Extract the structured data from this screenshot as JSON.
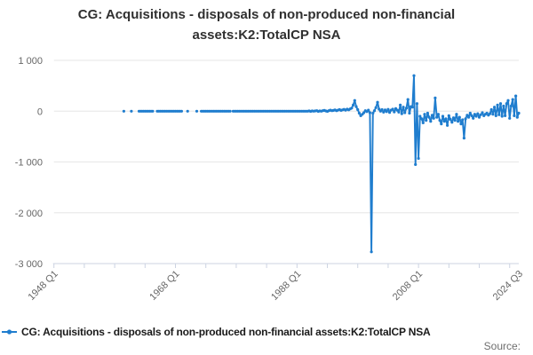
{
  "title": {
    "line1": "CG: Acquisitions - disposals of non-produced non-financial",
    "line2": "assets:K2:TotalCP NSA"
  },
  "legend": {
    "label": "CG: Acquisitions - disposals of non-produced non-financial assets:K2:TotalCP NSA",
    "marker": "line-with-dot-icon"
  },
  "footer": {
    "source_label": "Source:"
  },
  "colors": {
    "line": "#1f7dce",
    "grid": "#e6e6e6",
    "axis": "#ccd3e2",
    "tick_label": "#666666",
    "title_text": "#303030",
    "legend_text": "#1a1a1a",
    "source_text": "#6e6e6e"
  },
  "chart_data": {
    "type": "line",
    "title": "CG: Acquisitions - disposals of non-produced non-financial assets:K2:TotalCP NSA",
    "grid": true,
    "legend_position": "bottom-left",
    "ylim": [
      -3000,
      1000
    ],
    "x_range_years": [
      1948.0,
      2024.5
    ],
    "yticks": [
      {
        "value": 1000,
        "label": "1 000"
      },
      {
        "value": 0,
        "label": "0"
      },
      {
        "value": -1000,
        "label": "-1 000"
      },
      {
        "value": -2000,
        "label": "-2 000"
      },
      {
        "value": -3000,
        "label": "-3 000"
      }
    ],
    "xticks": [
      {
        "year": 1948.0,
        "label": "1948 Q1"
      },
      {
        "year": 1968.0,
        "label": "1968 Q1"
      },
      {
        "year": 1988.0,
        "label": "1988 Q1"
      },
      {
        "year": 2008.0,
        "label": "2008 Q1"
      },
      {
        "year": 2024.5,
        "label": "2024 Q3"
      }
    ],
    "minor_tick_years": [
      1948,
      1953,
      1958,
      1963,
      1968,
      1973,
      1978,
      1983,
      1988,
      1993,
      1998,
      2003,
      2008,
      2013,
      2018,
      2023
    ],
    "series": [
      {
        "name": "CG: Acquisitions - disposals of non-produced non-financial assets:K2:TotalCP NSA",
        "frequency": "quarterly",
        "start": "1959 Q3",
        "start_year_decimal": 1959.5,
        "values": [
          0,
          null,
          null,
          null,
          null,
          0,
          null,
          null,
          null,
          null,
          0,
          0,
          0,
          0,
          0,
          0,
          0,
          0,
          0,
          0,
          null,
          null,
          0,
          0,
          0,
          0,
          0,
          0,
          0,
          0,
          0,
          0,
          0,
          0,
          0,
          0,
          0,
          0,
          0,
          null,
          null,
          null,
          0,
          null,
          null,
          null,
          null,
          null,
          0,
          null,
          null,
          0,
          0,
          0,
          0,
          0,
          0,
          0,
          0,
          0,
          0,
          0,
          0,
          0,
          0,
          0,
          0,
          0,
          0,
          0,
          0,
          null,
          0,
          0,
          0,
          0,
          0,
          0,
          0,
          0,
          0,
          0,
          0,
          0,
          0,
          0,
          0,
          0,
          0,
          0,
          0,
          0,
          0,
          0,
          0,
          0,
          0,
          0,
          0,
          0,
          0,
          0,
          0,
          0,
          0,
          0,
          0,
          0,
          0,
          0,
          0,
          0,
          0,
          0,
          0,
          0,
          0,
          0,
          0,
          0,
          0,
          0,
          5,
          -5,
          5,
          0,
          5,
          10,
          -5,
          5,
          0,
          10,
          15,
          5,
          -5,
          10,
          20,
          10,
          15,
          25,
          10,
          20,
          30,
          15,
          25,
          35,
          20,
          40,
          25,
          45,
          60,
          120,
          210,
          90,
          30,
          -40,
          -90,
          -60,
          -30,
          10,
          -10,
          20,
          -30,
          -2770,
          -40,
          10,
          70,
          175,
          40,
          0,
          30,
          -20,
          25,
          -10,
          35,
          -25,
          20,
          40,
          -15,
          50,
          20,
          -20,
          120,
          -50,
          80,
          -30,
          60,
          230,
          -40,
          90,
          80,
          700,
          -1050,
          150,
          -930,
          -100,
          -150,
          -230,
          -60,
          -180,
          -40,
          -120,
          -200,
          -80,
          -140,
          260,
          -120,
          -60,
          -180,
          -250,
          -100,
          -200,
          -150,
          -280,
          -90,
          -160,
          -220,
          -130,
          -180,
          -60,
          -200,
          -120,
          -250,
          -170,
          -530,
          -150,
          -80,
          -120,
          -40,
          -90,
          -140,
          -60,
          -100,
          -50,
          -120,
          -70,
          -30,
          -90,
          -60,
          -40,
          -80,
          -50,
          30,
          -60,
          80,
          -90,
          120,
          -70,
          150,
          -100,
          100,
          -90,
          150,
          210,
          -140,
          100,
          230,
          -90,
          300,
          -120,
          -40
        ]
      }
    ]
  }
}
